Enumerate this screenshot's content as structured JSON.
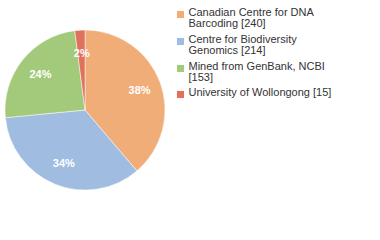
{
  "chart_data": {
    "type": "pie",
    "categories": [
      "Canadian Centre for DNA Barcoding [240]",
      "Centre for Biodiversity Genomics [214]",
      "Mined from GenBank, NCBI [153]",
      "University of Wollongong [15]"
    ],
    "values": [
      38,
      34,
      24,
      2
    ],
    "value_labels": [
      "38%",
      "34%",
      "24%",
      "2%"
    ],
    "colors": [
      "#f0ad78",
      "#a1bce1",
      "#a3c97b",
      "#e0715b"
    ],
    "data_labels": true,
    "legend": "right"
  }
}
